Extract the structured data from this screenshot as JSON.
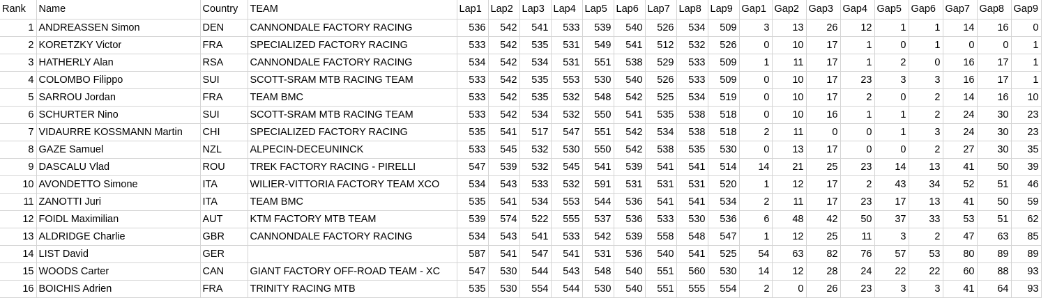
{
  "columns": [
    "Rank",
    "Name",
    "Country",
    "TEAM",
    "Lap1",
    "Lap2",
    "Lap3",
    "Lap4",
    "Lap5",
    "Lap6",
    "Lap7",
    "Lap8",
    "Lap9",
    "Gap1",
    "Gap2",
    "Gap3",
    "Gap4",
    "Gap5",
    "Gap6",
    "Gap7",
    "Gap8",
    "Gap9"
  ],
  "rows": [
    {
      "rank": "1",
      "name": "ANDREASSEN Simon",
      "country": "DEN",
      "team": "CANNONDALE FACTORY RACING",
      "laps": [
        "536",
        "542",
        "541",
        "533",
        "539",
        "540",
        "526",
        "534",
        "509"
      ],
      "gaps": [
        "3",
        "13",
        "26",
        "12",
        "1",
        "1",
        "14",
        "16",
        "0"
      ]
    },
    {
      "rank": "2",
      "name": "KORETZKY Victor",
      "country": "FRA",
      "team": "SPECIALIZED FACTORY RACING",
      "laps": [
        "533",
        "542",
        "535",
        "531",
        "549",
        "541",
        "512",
        "532",
        "526"
      ],
      "gaps": [
        "0",
        "10",
        "17",
        "1",
        "0",
        "1",
        "0",
        "0",
        "1"
      ]
    },
    {
      "rank": "3",
      "name": "HATHERLY Alan",
      "country": "RSA",
      "team": "CANNONDALE FACTORY RACING",
      "laps": [
        "534",
        "542",
        "534",
        "531",
        "551",
        "538",
        "529",
        "533",
        "509"
      ],
      "gaps": [
        "1",
        "11",
        "17",
        "1",
        "2",
        "0",
        "16",
        "17",
        "1"
      ]
    },
    {
      "rank": "4",
      "name": "COLOMBO Filippo",
      "country": "SUI",
      "team": "SCOTT-SRAM MTB RACING TEAM",
      "laps": [
        "533",
        "542",
        "535",
        "553",
        "530",
        "540",
        "526",
        "533",
        "509"
      ],
      "gaps": [
        "0",
        "10",
        "17",
        "23",
        "3",
        "3",
        "16",
        "17",
        "1"
      ]
    },
    {
      "rank": "5",
      "name": "SARROU Jordan",
      "country": "FRA",
      "team": "TEAM BMC",
      "laps": [
        "533",
        "542",
        "535",
        "532",
        "548",
        "542",
        "525",
        "534",
        "519"
      ],
      "gaps": [
        "0",
        "10",
        "17",
        "2",
        "0",
        "2",
        "14",
        "16",
        "10"
      ]
    },
    {
      "rank": "6",
      "name": "SCHURTER Nino",
      "country": "SUI",
      "team": "SCOTT-SRAM MTB RACING TEAM",
      "laps": [
        "533",
        "542",
        "534",
        "532",
        "550",
        "541",
        "535",
        "538",
        "518"
      ],
      "gaps": [
        "0",
        "10",
        "16",
        "1",
        "1",
        "2",
        "24",
        "30",
        "23"
      ]
    },
    {
      "rank": "7",
      "name": "VIDAURRE KOSSMANN Martin",
      "country": "CHI",
      "team": "SPECIALIZED FACTORY RACING",
      "laps": [
        "535",
        "541",
        "517",
        "547",
        "551",
        "542",
        "534",
        "538",
        "518"
      ],
      "gaps": [
        "2",
        "11",
        "0",
        "0",
        "1",
        "3",
        "24",
        "30",
        "23"
      ]
    },
    {
      "rank": "8",
      "name": "GAZE Samuel",
      "country": "NZL",
      "team": "ALPECIN-DECEUNINCK",
      "laps": [
        "533",
        "545",
        "532",
        "530",
        "550",
        "542",
        "538",
        "535",
        "530"
      ],
      "gaps": [
        "0",
        "13",
        "17",
        "0",
        "0",
        "2",
        "27",
        "30",
        "35"
      ]
    },
    {
      "rank": "9",
      "name": "DASCALU Vlad",
      "country": "ROU",
      "team": "TREK FACTORY RACING - PIRELLI",
      "laps": [
        "547",
        "539",
        "532",
        "545",
        "541",
        "539",
        "541",
        "541",
        "514"
      ],
      "gaps": [
        "14",
        "21",
        "25",
        "23",
        "14",
        "13",
        "41",
        "50",
        "39"
      ]
    },
    {
      "rank": "10",
      "name": "AVONDETTO Simone",
      "country": "ITA",
      "team": "WILIER-VITTORIA FACTORY TEAM XCO",
      "laps": [
        "534",
        "543",
        "533",
        "532",
        "591",
        "531",
        "531",
        "531",
        "520"
      ],
      "gaps": [
        "1",
        "12",
        "17",
        "2",
        "43",
        "34",
        "52",
        "51",
        "46"
      ]
    },
    {
      "rank": "11",
      "name": "ZANOTTI Juri",
      "country": "ITA",
      "team": "TEAM BMC",
      "laps": [
        "535",
        "541",
        "534",
        "553",
        "544",
        "536",
        "541",
        "541",
        "534"
      ],
      "gaps": [
        "2",
        "11",
        "17",
        "23",
        "17",
        "13",
        "41",
        "50",
        "59"
      ]
    },
    {
      "rank": "12",
      "name": "FOIDL Maximilian",
      "country": "AUT",
      "team": "KTM FACTORY MTB TEAM",
      "laps": [
        "539",
        "574",
        "522",
        "555",
        "537",
        "536",
        "533",
        "530",
        "536"
      ],
      "gaps": [
        "6",
        "48",
        "42",
        "50",
        "37",
        "33",
        "53",
        "51",
        "62"
      ]
    },
    {
      "rank": "13",
      "name": "ALDRIDGE Charlie",
      "country": "GBR",
      "team": "CANNONDALE FACTORY RACING",
      "laps": [
        "534",
        "543",
        "541",
        "533",
        "542",
        "539",
        "558",
        "548",
        "547"
      ],
      "gaps": [
        "1",
        "12",
        "25",
        "11",
        "3",
        "2",
        "47",
        "63",
        "85"
      ]
    },
    {
      "rank": "14",
      "name": "LIST David",
      "country": "GER",
      "team": "",
      "laps": [
        "587",
        "541",
        "547",
        "541",
        "531",
        "536",
        "540",
        "541",
        "525"
      ],
      "gaps": [
        "54",
        "63",
        "82",
        "76",
        "57",
        "53",
        "80",
        "89",
        "89"
      ]
    },
    {
      "rank": "15",
      "name": "WOODS Carter",
      "country": "CAN",
      "team": "GIANT FACTORY OFF-ROAD TEAM - XC",
      "laps": [
        "547",
        "530",
        "544",
        "543",
        "548",
        "540",
        "551",
        "560",
        "530"
      ],
      "gaps": [
        "14",
        "12",
        "28",
        "24",
        "22",
        "22",
        "60",
        "88",
        "93"
      ]
    },
    {
      "rank": "16",
      "name": "BOICHIS Adrien",
      "country": "FRA",
      "team": "TRINITY RACING MTB",
      "laps": [
        "535",
        "530",
        "554",
        "544",
        "530",
        "540",
        "551",
        "555",
        "554"
      ],
      "gaps": [
        "2",
        "0",
        "26",
        "23",
        "3",
        "3",
        "41",
        "64",
        "93"
      ]
    }
  ]
}
